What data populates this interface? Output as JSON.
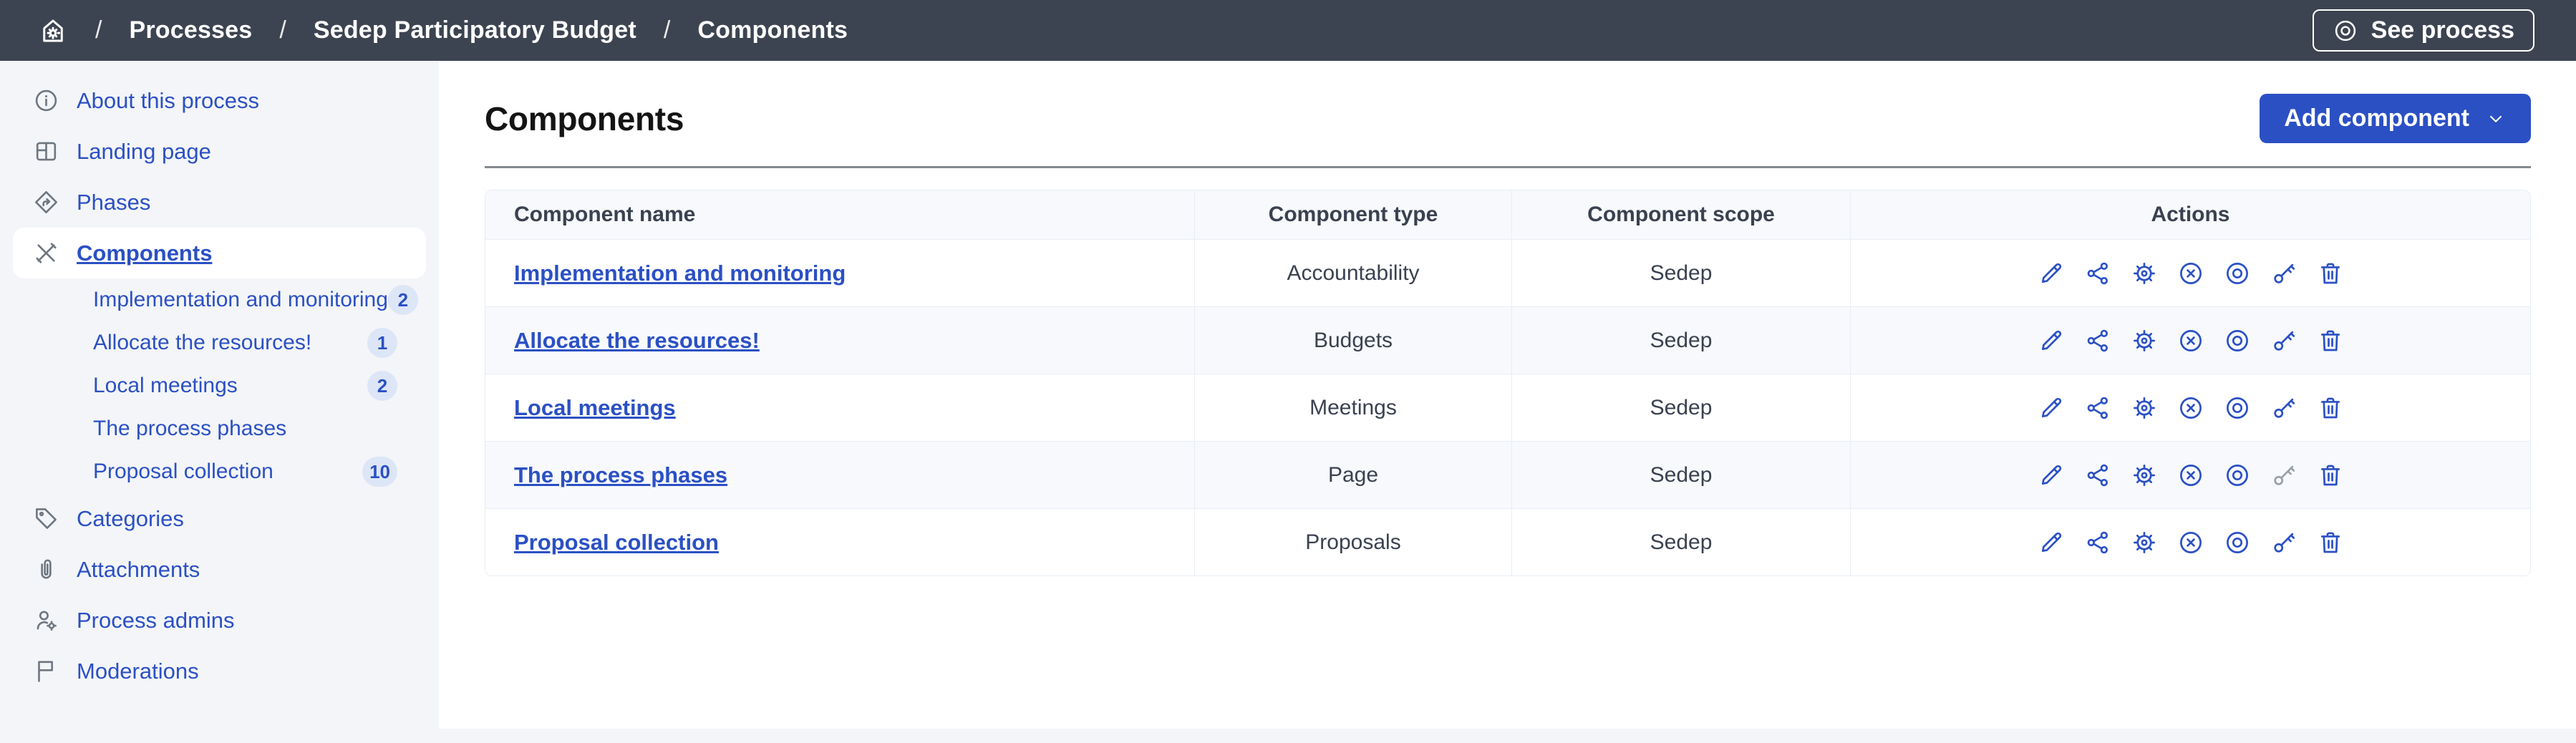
{
  "topbar": {
    "separator": "/",
    "breadcrumb": [
      "Processes",
      "Sedep Participatory Budget",
      "Components"
    ],
    "see_process": "See process"
  },
  "sidebar": {
    "items": [
      {
        "label": "About this process",
        "icon": "info"
      },
      {
        "label": "Landing page",
        "icon": "layout"
      },
      {
        "label": "Phases",
        "icon": "phases"
      },
      {
        "label": "Components",
        "icon": "tools",
        "active": true
      },
      {
        "label": "Implementation and monitoring",
        "sub": true,
        "badge": "2"
      },
      {
        "label": "Allocate the resources!",
        "sub": true,
        "badge": "1"
      },
      {
        "label": "Local meetings",
        "sub": true,
        "badge": "2"
      },
      {
        "label": "The process phases",
        "sub": true
      },
      {
        "label": "Proposal collection",
        "sub": true,
        "badge": "10"
      },
      {
        "label": "Categories",
        "icon": "tag"
      },
      {
        "label": "Attachments",
        "icon": "paperclip"
      },
      {
        "label": "Process admins",
        "icon": "user-gear"
      },
      {
        "label": "Moderations",
        "icon": "flag"
      }
    ]
  },
  "main": {
    "title": "Components",
    "add_component": "Add component",
    "table": {
      "headers": [
        "Component name",
        "Component type",
        "Component scope",
        "Actions"
      ],
      "action_icons": [
        "edit",
        "share",
        "configure",
        "unpublish",
        "preview",
        "permissions",
        "delete"
      ],
      "rows": [
        {
          "name": "Implementation and monitoring",
          "type": "Accountability",
          "scope": "Sedep",
          "disabled_actions": []
        },
        {
          "name": "Allocate the resources!",
          "type": "Budgets",
          "scope": "Sedep",
          "disabled_actions": []
        },
        {
          "name": "Local meetings",
          "type": "Meetings",
          "scope": "Sedep",
          "disabled_actions": []
        },
        {
          "name": "The process phases",
          "type": "Page",
          "scope": "Sedep",
          "disabled_actions": [
            "permissions"
          ]
        },
        {
          "name": "Proposal collection",
          "type": "Proposals",
          "scope": "Sedep",
          "disabled_actions": []
        }
      ]
    }
  },
  "colors": {
    "primary": "#2b50c4",
    "topbar_bg": "#3d4451",
    "sidebar_bg": "#f3f5f8",
    "table_border": "#e8edf6",
    "row_alt_bg": "#f7f9fc",
    "text_dark": "#3a4150",
    "icon_gray": "#6e7680",
    "disabled_icon": "#9aa0a8",
    "badge_bg": "#dde6f7"
  }
}
